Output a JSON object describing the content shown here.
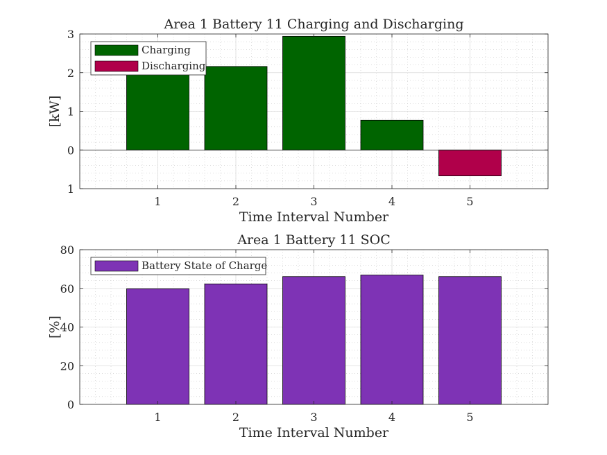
{
  "chart_data": [
    {
      "type": "bar",
      "title": "Area 1 Battery 11 Charging and Discharging",
      "xlabel": "Time Interval Number",
      "ylabel": "[kW]",
      "categories": [
        "1",
        "2",
        "3",
        "4",
        "5"
      ],
      "xlim": [
        0,
        6
      ],
      "ylim": [
        -1,
        3
      ],
      "yticks": [
        3,
        2,
        1,
        0,
        -1
      ],
      "ytick_labels": [
        "3",
        "2",
        "1",
        "0",
        "1"
      ],
      "series": [
        {
          "name": "Charging",
          "color": "#006400",
          "values": [
            2.07,
            2.16,
            2.94,
            0.77,
            0
          ]
        },
        {
          "name": "Discharging",
          "color": "#B0004A",
          "values": [
            0,
            0,
            0,
            0,
            -0.67
          ]
        }
      ],
      "grid": "minor",
      "legend_position": "top-left"
    },
    {
      "type": "bar",
      "title": "Area 1 Battery 11 SOC",
      "xlabel": "Time Interval Number",
      "ylabel": "[%]",
      "categories": [
        "1",
        "2",
        "3",
        "4",
        "5"
      ],
      "xlim": [
        0,
        6
      ],
      "ylim": [
        0,
        80
      ],
      "yticks": [
        80,
        60,
        40,
        20,
        0
      ],
      "ytick_labels": [
        "80",
        "60",
        "40",
        "20",
        "0"
      ],
      "series": [
        {
          "name": "Battery State of Charge",
          "color": "#7E33B5",
          "values": [
            59.8,
            62.3,
            66.1,
            66.9,
            66.1
          ]
        }
      ],
      "grid": "minor",
      "legend_position": "top-left"
    }
  ]
}
